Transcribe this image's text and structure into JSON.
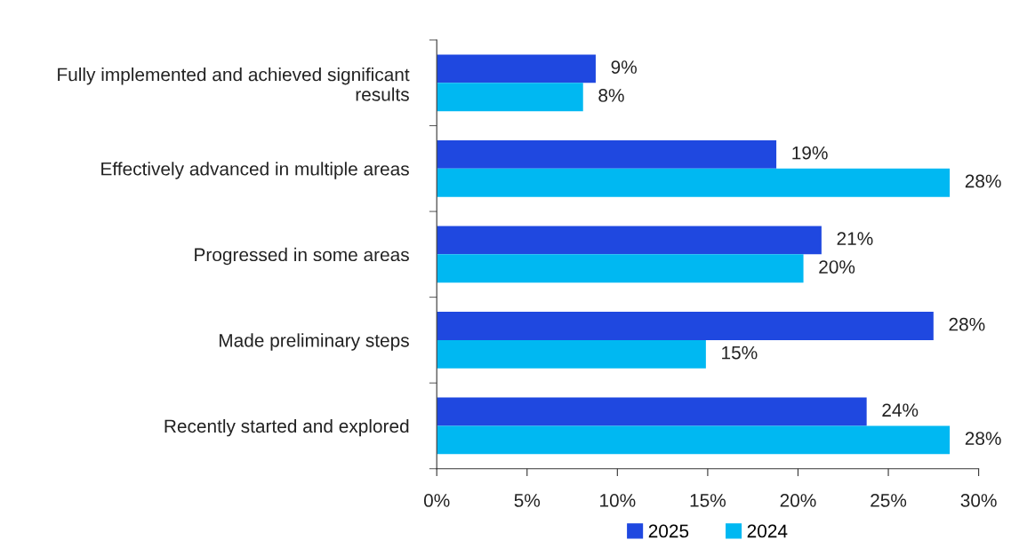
{
  "chart_data": {
    "type": "bar",
    "orientation": "horizontal",
    "categories": [
      "Fully implemented and achieved significant results",
      "Effectively advanced in multiple areas",
      "Progressed in some areas",
      "Made preliminary steps",
      "Recently started and explored"
    ],
    "series": [
      {
        "name": "2025",
        "color": "#1f48e0",
        "values": [
          8.8,
          18.8,
          21.3,
          27.5,
          23.8
        ],
        "value_labels": [
          "9%",
          "19%",
          "21%",
          "28%",
          "24%"
        ]
      },
      {
        "name": "2024",
        "color": "#00b8f2",
        "values": [
          8.1,
          28.4,
          20.3,
          14.9,
          28.4
        ],
        "value_labels": [
          "8%",
          "28%",
          "20%",
          "15%",
          "28%"
        ]
      }
    ],
    "xlim": [
      0,
      30
    ],
    "xticks": [
      {
        "value": 0,
        "label": "0%"
      },
      {
        "value": 5,
        "label": "5%"
      },
      {
        "value": 10,
        "label": "10%"
      },
      {
        "value": 15,
        "label": "15%"
      },
      {
        "value": 20,
        "label": "20%"
      },
      {
        "value": 25,
        "label": "25%"
      },
      {
        "value": 30,
        "label": "30%"
      }
    ],
    "grid": false,
    "legend": "bottom"
  }
}
